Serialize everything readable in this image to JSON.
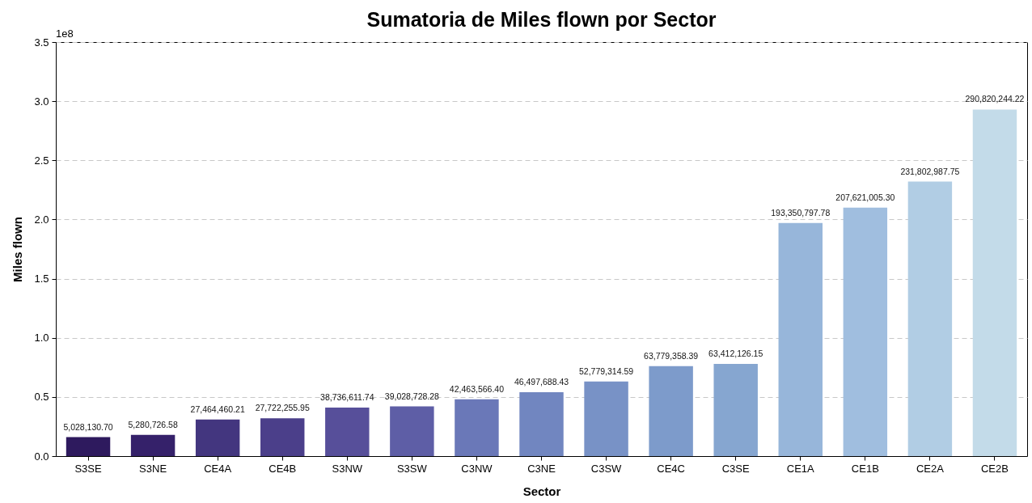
{
  "chart_data": {
    "type": "bar",
    "title": "Sumatoria de Miles flown por Sector",
    "xlabel": "Sector",
    "ylabel": "Miles flown",
    "categories": [
      "S3SE",
      "S3NE",
      "CE4A",
      "CE4B",
      "S3NW",
      "S3SW",
      "C3NW",
      "C3NE",
      "C3SW",
      "CE4C",
      "C3SE",
      "CE1A",
      "CE1B",
      "CE2A",
      "CE2B"
    ],
    "values": [
      0.16,
      0.18,
      0.31,
      0.32,
      0.41,
      0.42,
      0.48,
      0.54,
      0.63,
      0.76,
      0.78,
      1.97,
      2.1,
      2.32,
      2.93
    ],
    "colors": [
      "#2e1a5e",
      "#35216a",
      "#43367f",
      "#4b3f8a",
      "#574f9a",
      "#5e5ea6",
      "#6a78b8",
      "#7186c0",
      "#7892c6",
      "#7d9bcb",
      "#86a6d0",
      "#97b6da",
      "#a0bedf",
      "#b1cde4",
      "#c3dbe9"
    ],
    "annotations": [
      "1e8",
      {
        "text": "5,028,130.70",
        "x": "S3SE",
        "y": 0.16
      },
      {
        "text": "5,280,726.58",
        "x": "S3NE",
        "y": 0.18
      },
      {
        "text": "27,464,460.21",
        "x": "CE4A",
        "y": 0.31
      },
      {
        "text": "27,722,255.95",
        "x": "CE4B",
        "y": 0.32
      },
      {
        "text": "38,736,611.74",
        "x": "S3NW",
        "y": 0.41
      },
      {
        "text": "39,028,728.28",
        "x": "S3SW",
        "y": 0.42
      },
      {
        "text": "42,463,566.40",
        "x": "C3NW",
        "y": 0.48
      },
      {
        "text": "46,497,688.43",
        "x": "C3NE",
        "y": 0.54
      },
      {
        "text": "52,779,314.59",
        "x": "C3SW",
        "y": 0.63
      },
      {
        "text": "63,779,358.39",
        "x": "CE4C",
        "y": 0.76
      },
      {
        "text": "63,412,126.15",
        "x": "C3SE",
        "y": 0.78
      },
      {
        "text": "193,350,797.78",
        "x": "CE1A",
        "y": 1.97
      },
      {
        "text": "207,621,005.30",
        "x": "CE1B",
        "y": 2.1
      },
      {
        "text": "231,802,987.75",
        "x": "CE2A",
        "y": 2.32
      },
      {
        "text": "290,820,244.22",
        "x": "CE2B",
        "y": 2.93
      }
    ],
    "ylim": [
      0,
      3.5
    ],
    "yticks": [
      {
        "value": 0,
        "label": "0.0"
      },
      0.5,
      {
        "value": 1,
        "label": "1.0"
      },
      1.5,
      {
        "value": 2,
        "label": "2.0"
      },
      2.5,
      {
        "value": 3,
        "label": "3.0"
      },
      3.5
    ],
    "grid": "y"
  }
}
